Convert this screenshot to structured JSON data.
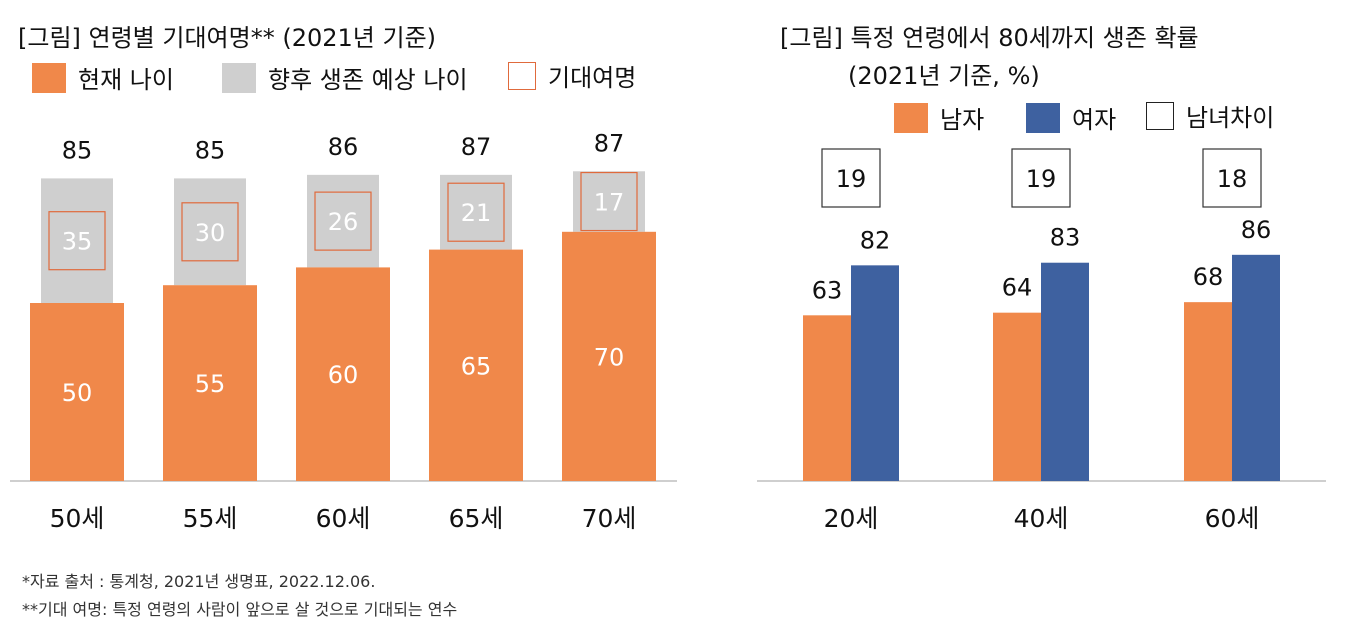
{
  "colors": {
    "orange": "#F0884A",
    "gray": "#CFCFCF",
    "blue": "#3E61A0",
    "frame_red": "#E06A3C",
    "axis": "#BFBFBF"
  },
  "chart_data": [
    {
      "type": "bar",
      "stacked": true,
      "title": "[그림] 연령별 기대여명** (2021년 기준)",
      "categories": [
        "50세",
        "55세",
        "60세",
        "65세",
        "70세"
      ],
      "series": [
        {
          "name": "현재 나이",
          "values": [
            50,
            55,
            60,
            65,
            70
          ]
        },
        {
          "name": "향후 생존 예상 나이",
          "values": [
            35,
            30,
            26,
            21,
            17
          ]
        }
      ],
      "totals": [
        85,
        85,
        86,
        87,
        87
      ],
      "framed_label_series": "기대여명",
      "legend": [
        "현재 나이",
        "향후 생존 예상 나이",
        "기대여명"
      ],
      "ylim": [
        0,
        90
      ]
    },
    {
      "type": "bar",
      "title": "[그림] 특정 연령에서 80세까지 생존 확률",
      "subtitle": "(2021년 기준, %)",
      "categories": [
        "20세",
        "40세",
        "60세"
      ],
      "series": [
        {
          "name": "남자",
          "values": [
            63,
            64,
            68
          ]
        },
        {
          "name": "여자",
          "values": [
            82,
            83,
            86
          ]
        }
      ],
      "difference": {
        "name": "남녀차이",
        "values": [
          19,
          19,
          18
        ]
      },
      "legend": [
        "남자",
        "여자",
        "남녀차이"
      ],
      "ylim": [
        0,
        100
      ]
    }
  ],
  "notes": [
    "*자료 출처 : 통계청, 2021년 생명표, 2022.12.06.",
    "**기대 여명: 특정 연령의 사람이 앞으로 살 것으로 기대되는 연수"
  ]
}
